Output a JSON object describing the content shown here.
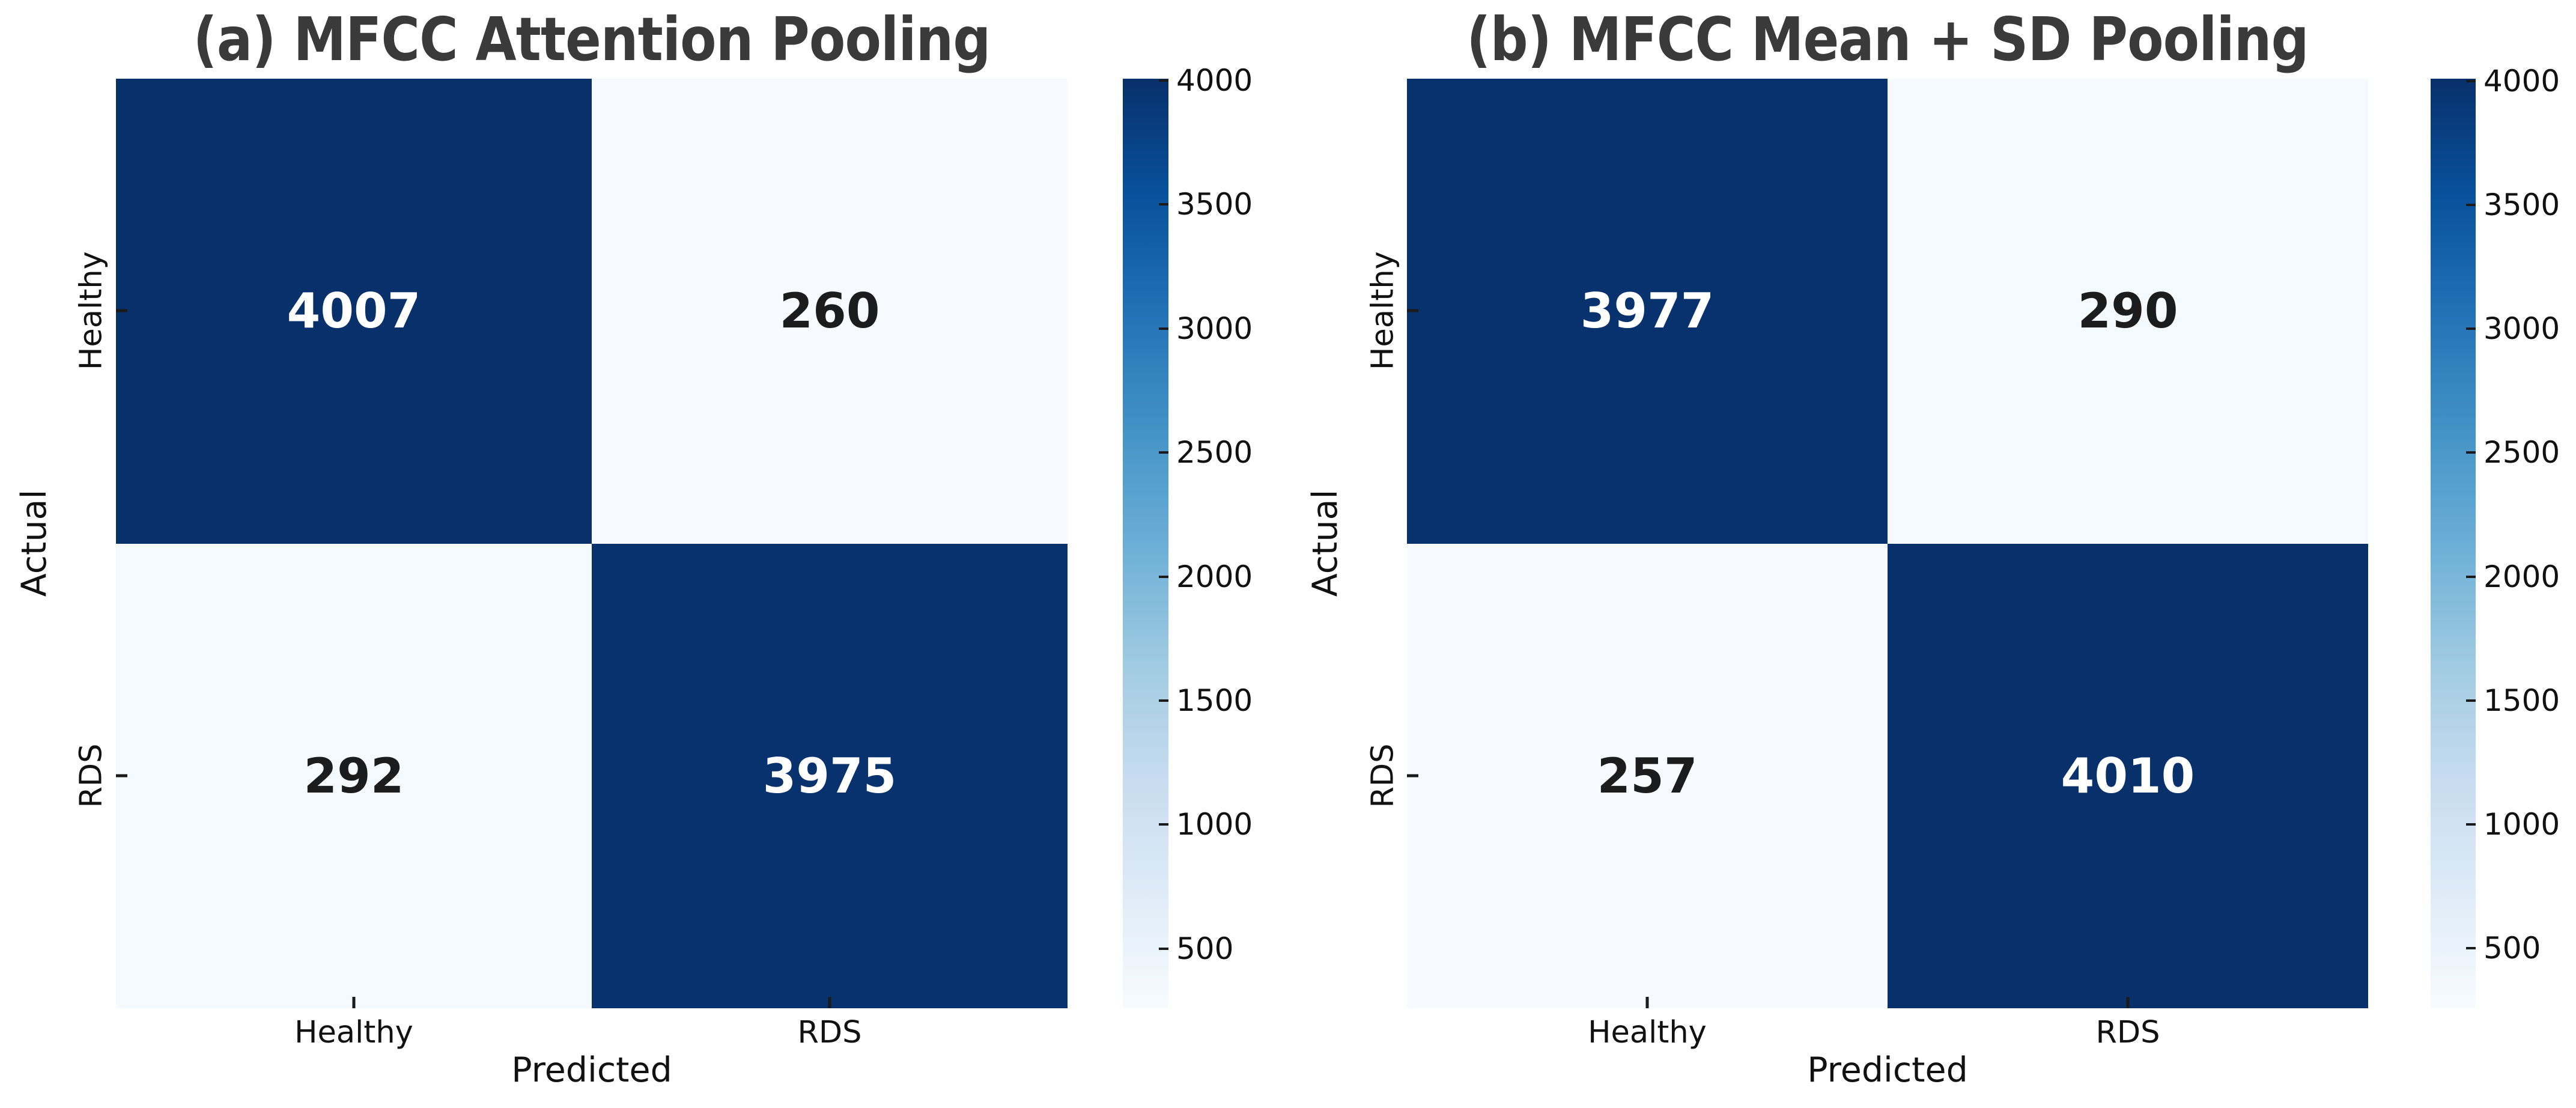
{
  "colors": {
    "background": "#ffffff",
    "colormap_dark_end": "#08306b",
    "colormap_light_end": "#f7fbff",
    "title_text": "#3a3a3a",
    "axis_text": "#111111",
    "annotation_on_dark": "#ffffff",
    "annotation_on_light": "#1c1c1c"
  },
  "chart_data": [
    {
      "type": "heatmap",
      "title": "(a) MFCC Attention Pooling",
      "xlabel": "Predicted",
      "ylabel": "Actual",
      "x_categories": [
        "Healthy",
        "RDS"
      ],
      "y_categories": [
        "Healthy",
        "RDS"
      ],
      "values": [
        [
          4007,
          260
        ],
        [
          292,
          3975
        ]
      ],
      "vmin": 260,
      "vmax": 4007,
      "colormap": "Blues",
      "colorbar_ticks": [
        500,
        1000,
        1500,
        2000,
        2500,
        3000,
        3500,
        4000
      ],
      "legend_position": "right-colorbar",
      "grid": false
    },
    {
      "type": "heatmap",
      "title": "(b) MFCC Mean + SD Pooling",
      "xlabel": "Predicted",
      "ylabel": "Actual",
      "x_categories": [
        "Healthy",
        "RDS"
      ],
      "y_categories": [
        "Healthy",
        "RDS"
      ],
      "values": [
        [
          3977,
          290
        ],
        [
          257,
          4010
        ]
      ],
      "vmin": 257,
      "vmax": 4010,
      "colormap": "Blues",
      "colorbar_ticks": [
        500,
        1000,
        1500,
        2000,
        2500,
        3000,
        3500,
        4000
      ],
      "legend_position": "right-colorbar",
      "grid": false
    }
  ]
}
